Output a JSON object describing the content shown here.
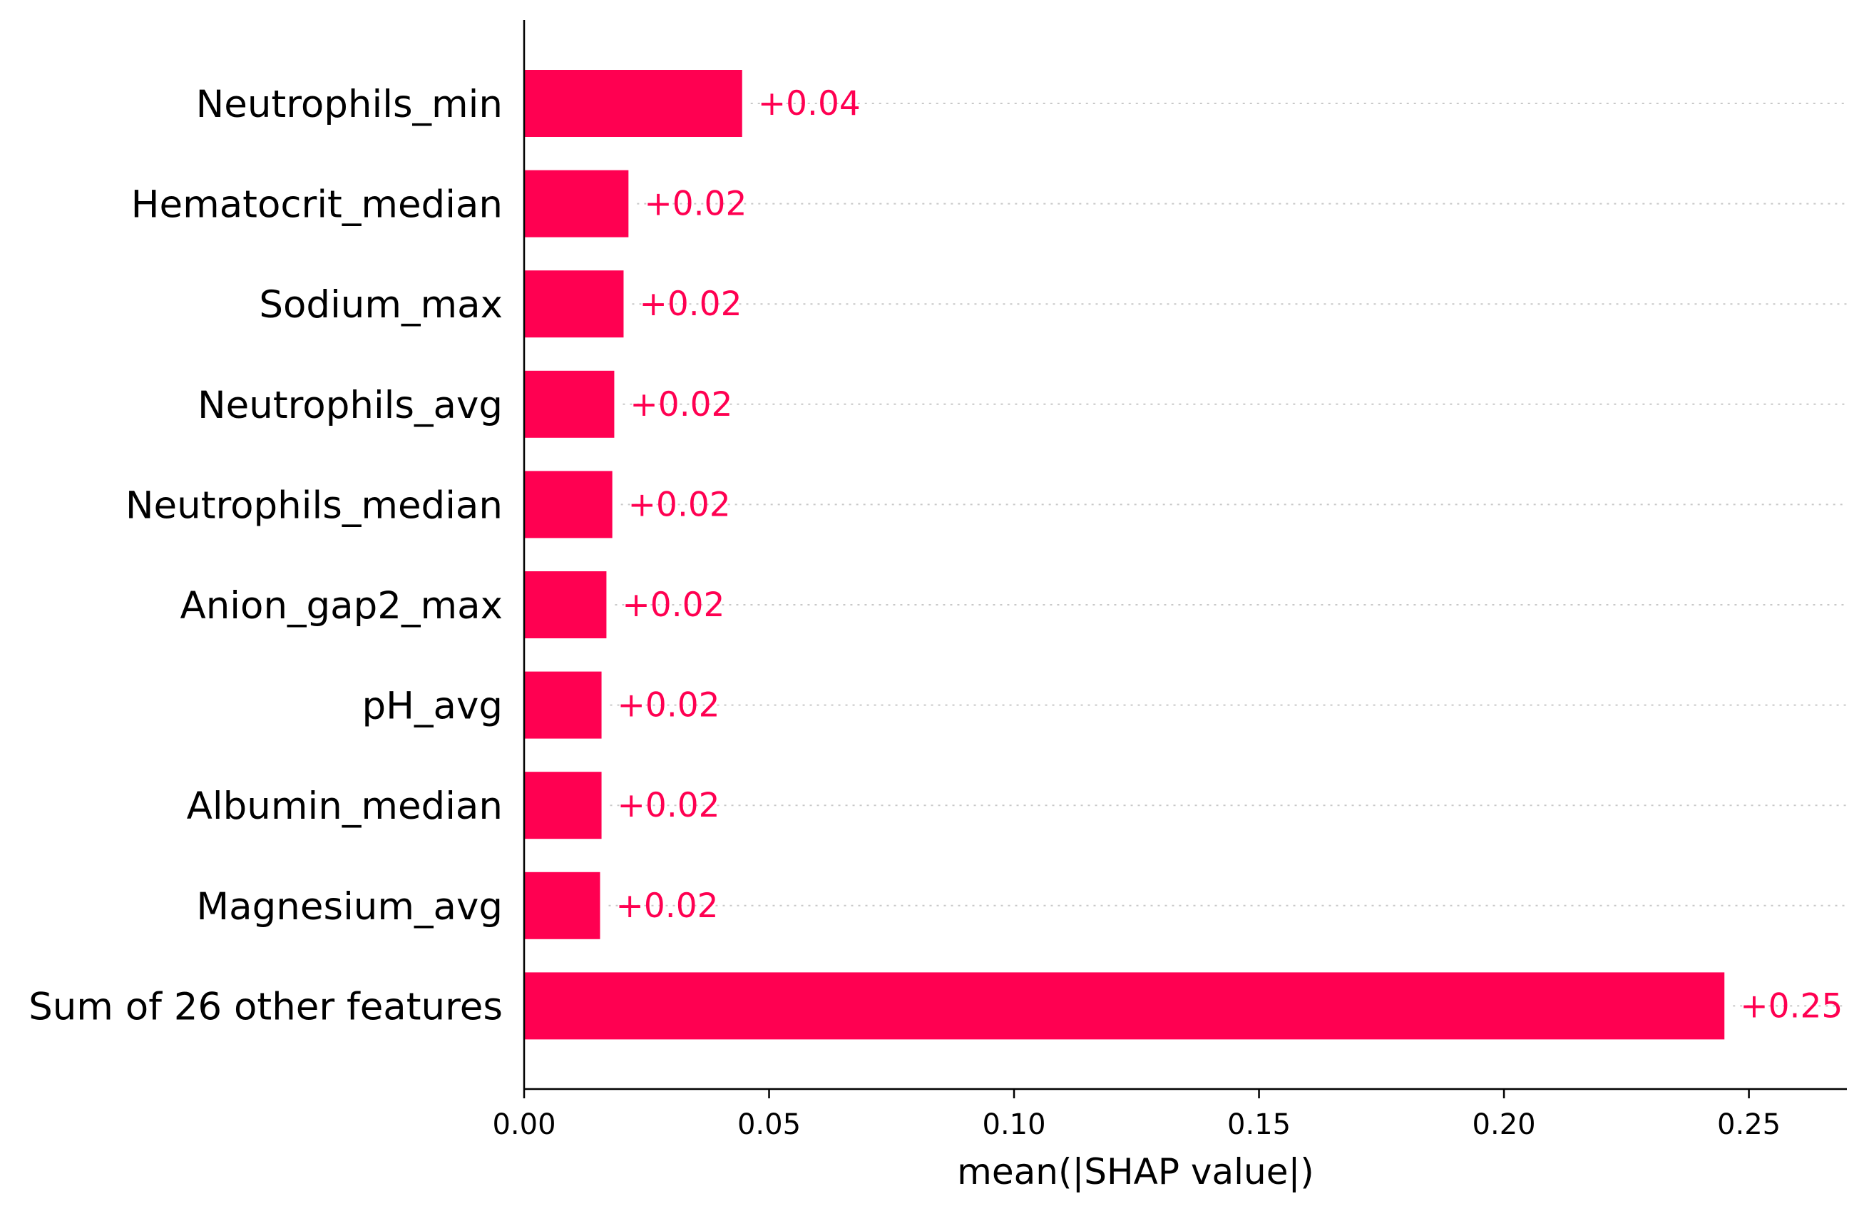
{
  "chart_data": {
    "type": "bar",
    "orientation": "horizontal",
    "categories": [
      "Neutrophils_min",
      "Hematocrit_median",
      "Sodium_max",
      "Neutrophils_avg",
      "Neutrophils_median",
      "Anion_gap2_max",
      "pH_avg",
      "Albumin_median",
      "Magnesium_avg",
      "Sum of 26 other features"
    ],
    "values": [
      0.0445,
      0.0213,
      0.0203,
      0.0184,
      0.018,
      0.0168,
      0.0158,
      0.0158,
      0.0155,
      0.245
    ],
    "value_labels": [
      "+0.04",
      "+0.02",
      "+0.02",
      "+0.02",
      "+0.02",
      "+0.02",
      "+0.02",
      "+0.02",
      "+0.02",
      "+0.25"
    ],
    "xlabel": "mean(|SHAP value|)",
    "ylabel": "",
    "xlim": [
      0,
      0.27
    ],
    "xticks": [
      "0.00",
      "0.05",
      "0.10",
      "0.15",
      "0.20",
      "0.25"
    ],
    "xtick_values": [
      0,
      0.05,
      0.1,
      0.15,
      0.2,
      0.25
    ],
    "grid": "dotted horizontal guide lines per feature row",
    "bar_color": "#ff0051",
    "label_color": "#ff0051",
    "axis_color": "#000000",
    "grid_color": "#c8c8c8"
  }
}
